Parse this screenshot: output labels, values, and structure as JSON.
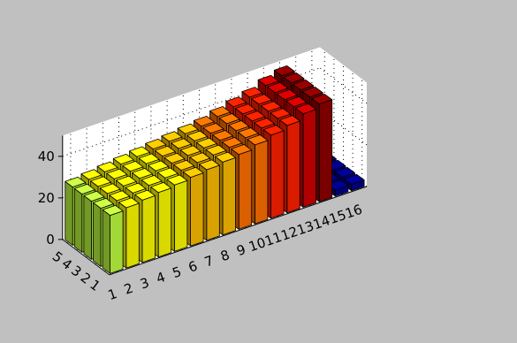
{
  "chart_data": {
    "type": "bar3",
    "title": "",
    "xlabel": "",
    "ylabel": "",
    "zlabel": "",
    "x_categories": [
      "1",
      "2",
      "3",
      "4",
      "5",
      "6",
      "7",
      "8",
      "9",
      "10",
      "11",
      "12",
      "13",
      "14",
      "15",
      "16"
    ],
    "y_categories": [
      "1",
      "2",
      "3",
      "4",
      "5"
    ],
    "z_ticks": [
      "0",
      "20",
      "40"
    ],
    "zlim": [
      0,
      50
    ],
    "grid": true,
    "colormap": "jet",
    "colors": [
      "#00008f",
      "#0000df",
      "#0030ff",
      "#0080ff",
      "#00cfff",
      "#20ffdf",
      "#70ff8f",
      "#bfff40",
      "#ffff00",
      "#ffbf00",
      "#ff7000",
      "#ff2000",
      "#cf0000",
      "#8f0000"
    ],
    "values": [
      [
        28,
        29,
        30,
        31,
        32,
        33,
        34,
        35,
        36,
        38,
        40,
        42,
        45,
        47,
        3,
        3
      ],
      [
        28,
        29,
        30,
        31,
        32,
        33,
        34,
        35,
        36,
        38,
        40,
        42,
        45,
        47,
        3,
        3
      ],
      [
        28,
        29,
        30,
        31,
        32,
        33,
        34,
        35,
        36,
        38,
        40,
        42,
        45,
        47,
        3,
        3
      ],
      [
        28,
        29,
        30,
        31,
        32,
        33,
        34,
        35,
        36,
        38,
        40,
        42,
        45,
        47,
        3,
        3
      ],
      [
        28,
        29,
        30,
        31,
        32,
        33,
        34,
        35,
        36,
        38,
        40,
        42,
        45,
        47,
        3,
        3
      ]
    ]
  }
}
